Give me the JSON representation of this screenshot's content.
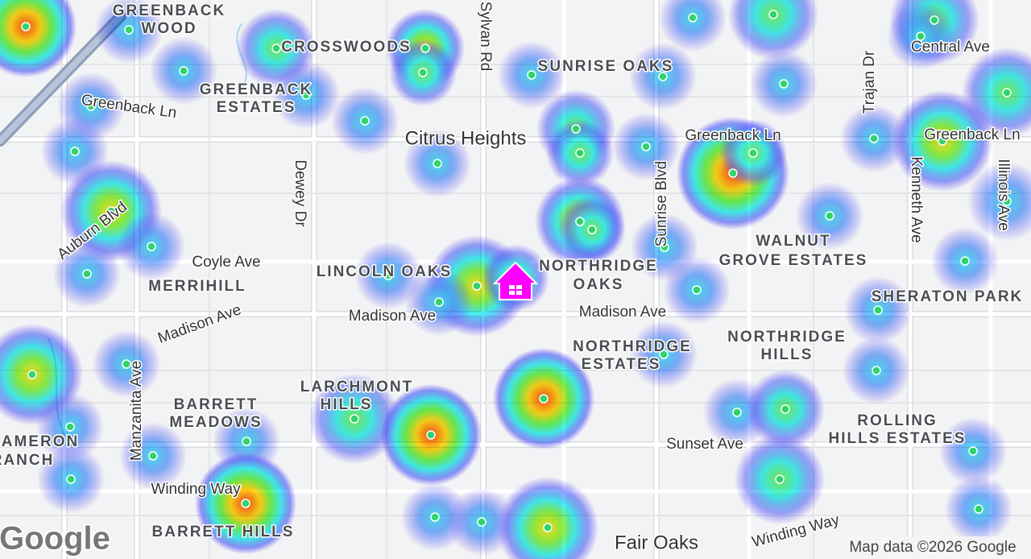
{
  "logo": "Google",
  "attribution": "Map data ©2026 Google",
  "cities": [
    "Citrus Heights",
    "Fair Oaks"
  ],
  "neighborhoods": [
    {
      "lines": [
        "GREENBACK",
        "WOOD"
      ]
    },
    {
      "lines": [
        "CROSSWOODS"
      ]
    },
    {
      "lines": [
        "GREENBACK",
        "ESTATES"
      ]
    },
    {
      "lines": [
        "SUNRISE OAKS"
      ]
    },
    {
      "lines": [
        "LINCOLN OAKS"
      ]
    },
    {
      "lines": [
        "NORTHRIDGE",
        "OAKS"
      ]
    },
    {
      "lines": [
        "WALNUT",
        "GROVE ESTATES"
      ]
    },
    {
      "lines": [
        "MERRIHILL"
      ]
    },
    {
      "lines": [
        "SHERATON PARK"
      ]
    },
    {
      "lines": [
        "NORTHRIDGE",
        "ESTATES"
      ]
    },
    {
      "lines": [
        "NORTHRIDGE",
        "HILLS"
      ]
    },
    {
      "lines": [
        "LARCHMONT",
        "HILLS"
      ]
    },
    {
      "lines": [
        "BARRETT",
        "MEADOWS"
      ]
    },
    {
      "lines": [
        "AMERON",
        "RANCH"
      ]
    },
    {
      "lines": [
        "ROLLING",
        "HILLS ESTATES"
      ]
    },
    {
      "lines": [
        "BARRETT HILLS"
      ]
    }
  ],
  "roads": [
    "Greenback Ln",
    "Sylvan Rd",
    "Dewey Dr",
    "Sunrise Blvd",
    "Trajan Dr",
    "Central Ave",
    "Greenback Ln",
    "Greenback Ln",
    "Kenneth Ave",
    "Illinois Ave",
    "Auburn Blvd",
    "Coyle Ave",
    "Madison Ave",
    "Madison Ave",
    "Madison Ave",
    "Manzanita Ave",
    "Sunset Ave",
    "Winding Way",
    "Winding Way"
  ]
}
